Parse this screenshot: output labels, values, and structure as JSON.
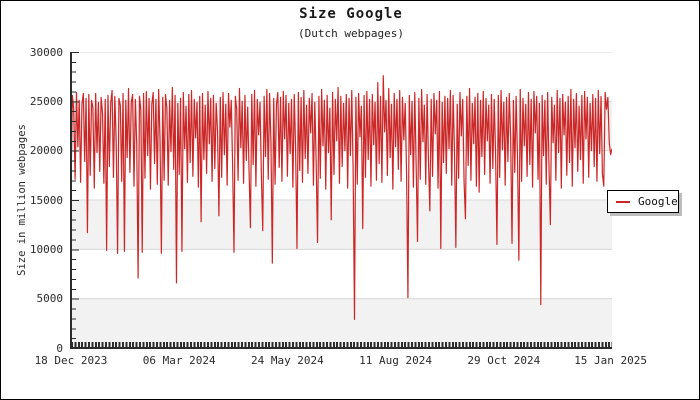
{
  "header": {
    "title": "Size Google",
    "subtitle": "(Dutch webpages)"
  },
  "legend": {
    "label": "Google"
  },
  "colors": {
    "line": "#cd2626",
    "band": "#f2f2f2",
    "grid": "#d8d8d8",
    "axis": "#2b2b2b",
    "legend_shadow": "#bdbdbd"
  },
  "chart_data": {
    "type": "line",
    "title": "Size Google",
    "subtitle": "(Dutch webpages)",
    "xlabel": "",
    "ylabel": "Size in million webpages",
    "ylim": [
      0,
      30000
    ],
    "y_ticks": [
      0,
      5000,
      10000,
      15000,
      20000,
      25000,
      30000
    ],
    "grid": "horizontal gridlines every 5000, alternating shaded bands",
    "legend_entries": [
      "Google"
    ],
    "legend_position": "middle-right",
    "x_ticks": [
      {
        "label": "18 Dec 2023",
        "day": 0
      },
      {
        "label": "06 Mar 2024",
        "day": 79
      },
      {
        "label": "24 May 2024",
        "day": 158
      },
      {
        "label": "11 Aug 2024",
        "day": 237
      },
      {
        "label": "29 Oct 2024",
        "day": 316
      },
      {
        "label": "15 Jan 2025",
        "day": 394
      }
    ],
    "total_days": 395,
    "series_name": "Google",
    "start_date_label": "18 Dec 2023",
    "cadence": "daily",
    "values": [
      16300,
      25600,
      24200,
      17100,
      25900,
      20400,
      25100,
      16800,
      24700,
      25800,
      18900,
      25300,
      11700,
      25700,
      17500,
      25100,
      24300,
      16200,
      25800,
      19800,
      24900,
      17900,
      25400,
      23800,
      16700,
      25200,
      9900,
      25600,
      18400,
      24800,
      26100,
      17300,
      25500,
      20900,
      9600,
      25300,
      24600,
      16900,
      25800,
      9800,
      25100,
      19300,
      26300,
      17800,
      24900,
      25700,
      16400,
      25200,
      20600,
      7100,
      25500,
      24100,
      9700,
      25800,
      17200,
      26000,
      19500,
      25300,
      16100,
      24700,
      25900,
      18700,
      25200,
      16600,
      26200,
      21100,
      9600,
      25400,
      17000,
      25700,
      24300,
      16500,
      25100,
      19900,
      26400,
      18100,
      25600,
      6600,
      24800,
      17600,
      25300,
      9800,
      25900,
      20200,
      24500,
      16800,
      25700,
      18800,
      26100,
      17400,
      25200,
      21300,
      24900,
      16300,
      25500,
      12800,
      25800,
      19100,
      24600,
      17700,
      26000,
      20700,
      25300,
      16900,
      25600,
      18200,
      24800,
      21900,
      13400,
      25400,
      17300,
      25900,
      19600,
      24700,
      16500,
      25800,
      22400,
      25100,
      18500,
      9700,
      25500,
      24200,
      17000,
      26300,
      20300,
      25000,
      16700,
      25600,
      19000,
      24400,
      17900,
      12200,
      25700,
      18600,
      26100,
      16400,
      25200,
      21600,
      24900,
      17500,
      11900,
      25500,
      19400,
      26200,
      17100,
      25800,
      20800,
      8600,
      25300,
      16600,
      24700,
      25900,
      18300,
      25400,
      16900,
      26000,
      21200,
      25600,
      17400,
      24800,
      19700,
      25200,
      16300,
      25700,
      20100,
      10100,
      25900,
      18000,
      25400,
      16800,
      26100,
      19200,
      24600,
      17700,
      25300,
      21800,
      25800,
      16500,
      24900,
      18900,
      10700,
      25500,
      17200,
      26200,
      20500,
      25100,
      16100,
      25600,
      19800,
      24300,
      13000,
      25900,
      17600,
      25200,
      21000,
      26400,
      16700,
      25500,
      18400,
      24800,
      20000,
      25700,
      16200,
      25300,
      19500,
      26100,
      17900,
      2900,
      25400,
      16600,
      25800,
      21400,
      24500,
      12100,
      25600,
      17300,
      26000,
      19100,
      25200,
      16400,
      25700,
      20600,
      24900,
      17000,
      26900,
      18700,
      25500,
      16800,
      27600,
      21900,
      25100,
      17500,
      26300,
      19300,
      24700,
      16100,
      25800,
      20400,
      25200,
      18100,
      26100,
      16900,
      25400,
      21100,
      24800,
      17800,
      5100,
      25600,
      19600,
      25000,
      16300,
      25900,
      18600,
      10800,
      25300,
      17100,
      26200,
      20900,
      24600,
      16600,
      25700,
      19000,
      13900,
      25200,
      17400,
      25800,
      21700,
      25100,
      16200,
      26000,
      10100,
      24900,
      18800,
      25500,
      17700,
      25300,
      20200,
      26100,
      16500,
      25600,
      19900,
      10200,
      24700,
      17200,
      25900,
      21500,
      25200,
      16800,
      13100,
      25500,
      18500,
      26300,
      17000,
      24800,
      20700,
      25400,
      16400,
      25800,
      15800,
      25100,
      19400,
      26000,
      17600,
      25300,
      21000,
      24600,
      16700,
      25700,
      18200,
      25200,
      19700,
      10500,
      25600,
      17300,
      26100,
      20100,
      24900,
      16500,
      25400,
      18900,
      25800,
      21300,
      10600,
      25100,
      17800,
      25500,
      19200,
      8900,
      26200,
      16900,
      25300,
      20500,
      24700,
      17400,
      25900,
      18600,
      25200,
      16300,
      26000,
      21800,
      25500,
      17100,
      24800,
      4400,
      25600,
      19500,
      25100,
      16600,
      25900,
      18300,
      12500,
      25400,
      20800,
      24600,
      17000,
      26100,
      19800,
      25300,
      16200,
      25700,
      21600,
      24900,
      17500,
      25500,
      18800,
      26200,
      16400,
      25200,
      20300,
      25800,
      17900,
      24500,
      19100,
      25600,
      16700,
      26000,
      21200,
      25400,
      17300,
      24800,
      20000,
      25700,
      18400,
      25300,
      16900,
      26100,
      19700,
      25500,
      17600,
      16400,
      25900,
      24200,
      25400,
      20800,
      19600,
      20200
    ]
  }
}
